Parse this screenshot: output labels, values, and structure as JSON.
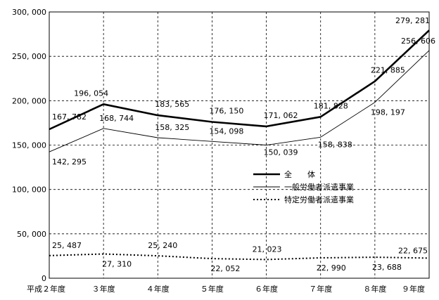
{
  "chart_data": {
    "type": "line",
    "categories": [
      "平成２年度",
      "３年度",
      "４年度",
      "５年度",
      "６年度",
      "７年度",
      "８年度",
      "９年度"
    ],
    "ylim": [
      0,
      300000
    ],
    "yticks": [
      0,
      50000,
      100000,
      150000,
      200000,
      250000,
      300000
    ],
    "ytick_labels": [
      "0",
      "50, 000",
      "100, 000",
      "150, 000",
      "200, 000",
      "250, 000",
      "300, 000"
    ],
    "grid": true,
    "legend_position": "center-right",
    "series": [
      {
        "name": "全　　体",
        "style": "thick",
        "values": [
          167782,
          196054,
          183565,
          176150,
          171062,
          181828,
          221885,
          279281
        ],
        "labels": [
          "167, 782",
          "196, 054",
          "183, 565",
          "176, 150",
          "171, 062",
          "181, 828",
          "221, 885",
          "279, 281"
        ]
      },
      {
        "name": "一般労働者派遣事業",
        "style": "thin",
        "values": [
          142295,
          168744,
          158325,
          154098,
          150039,
          158838,
          198197,
          256606
        ],
        "labels": [
          "142, 295",
          "168, 744",
          "158, 325",
          "154, 098",
          "150, 039",
          "158, 838",
          "198, 197",
          "256, 606"
        ]
      },
      {
        "name": "特定労働者派遣事業",
        "style": "dotted",
        "values": [
          25487,
          27310,
          25240,
          22052,
          21023,
          22990,
          23688,
          22675
        ],
        "labels": [
          "25, 487",
          "27, 310",
          "25, 240",
          "22, 052",
          "21, 023",
          "22, 990",
          "23, 688",
          "22, 675"
        ]
      }
    ]
  },
  "colors": {
    "line": "#000000",
    "background": "#ffffff"
  }
}
